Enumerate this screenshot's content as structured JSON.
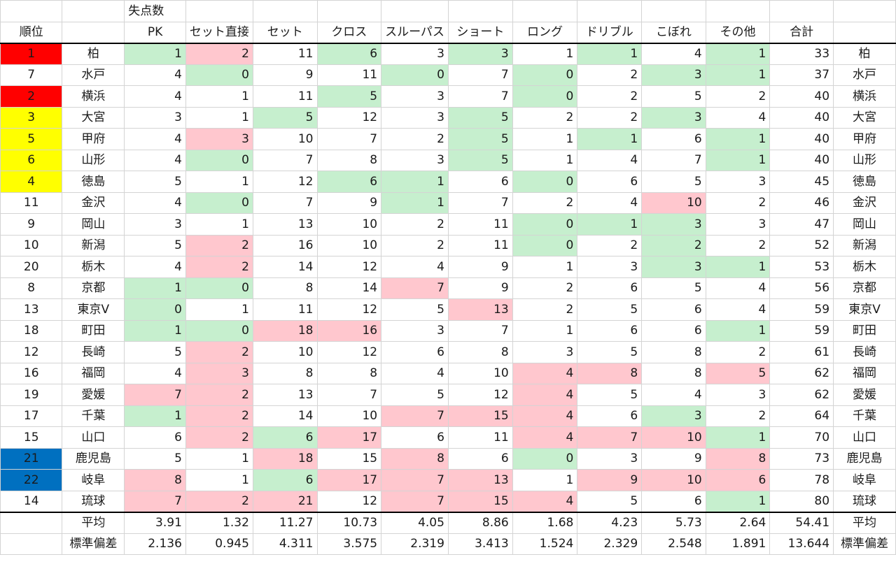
{
  "header": {
    "group_label": "失点数",
    "rank_label": "順位",
    "columns": [
      "PK",
      "セット直接",
      "セット",
      "クロス",
      "スルーパス",
      "ショート",
      "ロング",
      "ドリブル",
      "こぼれ",
      "その他"
    ],
    "total_label": "合計"
  },
  "rows": [
    {
      "rank": "1",
      "rank_color": "red",
      "team": "柏",
      "values": [
        "1",
        "2",
        "11",
        "6",
        "3",
        "3",
        "1",
        "1",
        "4",
        "1"
      ],
      "hl": [
        "pos",
        "neg",
        "",
        "pos",
        "",
        "pos",
        "",
        "pos",
        "",
        "pos"
      ],
      "total": "33"
    },
    {
      "rank": "7",
      "rank_color": "",
      "team": "水戸",
      "values": [
        "4",
        "0",
        "9",
        "11",
        "0",
        "7",
        "0",
        "2",
        "3",
        "1"
      ],
      "hl": [
        "",
        "pos",
        "",
        "",
        "pos",
        "",
        "pos",
        "",
        "pos",
        "pos"
      ],
      "total": "37"
    },
    {
      "rank": "2",
      "rank_color": "red",
      "team": "横浜",
      "values": [
        "4",
        "1",
        "11",
        "5",
        "3",
        "7",
        "0",
        "2",
        "5",
        "2"
      ],
      "hl": [
        "",
        "",
        "",
        "pos",
        "",
        "",
        "pos",
        "",
        "",
        ""
      ],
      "total": "40"
    },
    {
      "rank": "3",
      "rank_color": "yellow",
      "team": "大宮",
      "values": [
        "3",
        "1",
        "5",
        "12",
        "3",
        "5",
        "2",
        "2",
        "3",
        "4"
      ],
      "hl": [
        "",
        "",
        "pos",
        "",
        "",
        "pos",
        "",
        "",
        "pos",
        ""
      ],
      "total": "40"
    },
    {
      "rank": "5",
      "rank_color": "yellow",
      "team": "甲府",
      "values": [
        "4",
        "3",
        "10",
        "7",
        "2",
        "5",
        "1",
        "1",
        "6",
        "1"
      ],
      "hl": [
        "",
        "neg",
        "",
        "",
        "",
        "pos",
        "",
        "pos",
        "",
        "pos"
      ],
      "total": "40"
    },
    {
      "rank": "6",
      "rank_color": "yellow",
      "team": "山形",
      "values": [
        "4",
        "0",
        "7",
        "8",
        "3",
        "5",
        "1",
        "4",
        "7",
        "1"
      ],
      "hl": [
        "",
        "pos",
        "",
        "",
        "",
        "pos",
        "",
        "",
        "",
        "pos"
      ],
      "total": "40"
    },
    {
      "rank": "4",
      "rank_color": "yellow",
      "team": "徳島",
      "values": [
        "5",
        "1",
        "12",
        "6",
        "1",
        "6",
        "0",
        "6",
        "5",
        "3"
      ],
      "hl": [
        "",
        "",
        "",
        "pos",
        "pos",
        "",
        "pos",
        "",
        "",
        ""
      ],
      "total": "45"
    },
    {
      "rank": "11",
      "rank_color": "",
      "team": "金沢",
      "values": [
        "4",
        "0",
        "7",
        "9",
        "1",
        "7",
        "2",
        "4",
        "10",
        "2"
      ],
      "hl": [
        "",
        "pos",
        "",
        "",
        "pos",
        "",
        "",
        "",
        "neg",
        ""
      ],
      "total": "46"
    },
    {
      "rank": "9",
      "rank_color": "",
      "team": "岡山",
      "values": [
        "3",
        "1",
        "13",
        "10",
        "2",
        "11",
        "0",
        "1",
        "3",
        "3"
      ],
      "hl": [
        "",
        "",
        "",
        "",
        "",
        "",
        "pos",
        "pos",
        "pos",
        ""
      ],
      "total": "47"
    },
    {
      "rank": "10",
      "rank_color": "",
      "team": "新潟",
      "values": [
        "5",
        "2",
        "16",
        "10",
        "2",
        "11",
        "0",
        "2",
        "2",
        "2"
      ],
      "hl": [
        "",
        "neg",
        "",
        "",
        "",
        "",
        "pos",
        "",
        "pos",
        ""
      ],
      "total": "52"
    },
    {
      "rank": "20",
      "rank_color": "",
      "team": "栃木",
      "values": [
        "4",
        "2",
        "14",
        "12",
        "4",
        "9",
        "1",
        "3",
        "3",
        "1"
      ],
      "hl": [
        "",
        "neg",
        "",
        "",
        "",
        "",
        "",
        "",
        "pos",
        "pos"
      ],
      "total": "53"
    },
    {
      "rank": "8",
      "rank_color": "",
      "team": "京都",
      "values": [
        "1",
        "0",
        "8",
        "14",
        "7",
        "9",
        "2",
        "6",
        "5",
        "4"
      ],
      "hl": [
        "pos",
        "pos",
        "",
        "",
        "neg",
        "",
        "",
        "",
        "",
        ""
      ],
      "total": "56"
    },
    {
      "rank": "13",
      "rank_color": "",
      "team": "東京V",
      "values": [
        "0",
        "1",
        "11",
        "12",
        "5",
        "13",
        "2",
        "5",
        "6",
        "4"
      ],
      "hl": [
        "pos",
        "",
        "",
        "",
        "",
        "neg",
        "",
        "",
        "",
        ""
      ],
      "total": "59"
    },
    {
      "rank": "18",
      "rank_color": "",
      "team": "町田",
      "values": [
        "1",
        "0",
        "18",
        "16",
        "3",
        "7",
        "1",
        "6",
        "6",
        "1"
      ],
      "hl": [
        "pos",
        "pos",
        "neg",
        "neg",
        "",
        "",
        "",
        "",
        "",
        "pos"
      ],
      "total": "59"
    },
    {
      "rank": "12",
      "rank_color": "",
      "team": "長崎",
      "values": [
        "5",
        "2",
        "10",
        "12",
        "6",
        "8",
        "3",
        "5",
        "8",
        "2"
      ],
      "hl": [
        "",
        "neg",
        "",
        "",
        "",
        "",
        "",
        "",
        "",
        ""
      ],
      "total": "61"
    },
    {
      "rank": "16",
      "rank_color": "",
      "team": "福岡",
      "values": [
        "4",
        "3",
        "8",
        "8",
        "4",
        "10",
        "4",
        "8",
        "8",
        "5"
      ],
      "hl": [
        "",
        "neg",
        "",
        "",
        "",
        "",
        "neg",
        "neg",
        "",
        "neg"
      ],
      "total": "62"
    },
    {
      "rank": "19",
      "rank_color": "",
      "team": "愛媛",
      "values": [
        "7",
        "2",
        "13",
        "7",
        "5",
        "12",
        "4",
        "5",
        "4",
        "3"
      ],
      "hl": [
        "neg",
        "neg",
        "",
        "",
        "",
        "",
        "neg",
        "",
        "",
        ""
      ],
      "total": "62"
    },
    {
      "rank": "17",
      "rank_color": "",
      "team": "千葉",
      "values": [
        "1",
        "2",
        "14",
        "10",
        "7",
        "15",
        "4",
        "6",
        "3",
        "2"
      ],
      "hl": [
        "pos",
        "neg",
        "",
        "",
        "neg",
        "neg",
        "neg",
        "",
        "pos",
        ""
      ],
      "total": "64"
    },
    {
      "rank": "15",
      "rank_color": "",
      "team": "山口",
      "values": [
        "6",
        "2",
        "6",
        "17",
        "6",
        "11",
        "4",
        "7",
        "10",
        "1"
      ],
      "hl": [
        "",
        "neg",
        "pos",
        "neg",
        "",
        "",
        "neg",
        "neg",
        "neg",
        "pos"
      ],
      "total": "70"
    },
    {
      "rank": "21",
      "rank_color": "blue",
      "team": "鹿児島",
      "values": [
        "5",
        "1",
        "18",
        "15",
        "8",
        "6",
        "0",
        "3",
        "9",
        "8"
      ],
      "hl": [
        "",
        "",
        "neg",
        "",
        "neg",
        "",
        "pos",
        "",
        "",
        "neg"
      ],
      "total": "73"
    },
    {
      "rank": "22",
      "rank_color": "blue",
      "team": "岐阜",
      "values": [
        "8",
        "1",
        "6",
        "17",
        "7",
        "13",
        "1",
        "9",
        "10",
        "6"
      ],
      "hl": [
        "neg",
        "",
        "pos",
        "neg",
        "neg",
        "neg",
        "",
        "neg",
        "neg",
        "neg"
      ],
      "total": "78"
    },
    {
      "rank": "14",
      "rank_color": "",
      "team": "琉球",
      "values": [
        "7",
        "2",
        "21",
        "12",
        "7",
        "15",
        "4",
        "5",
        "6",
        "1"
      ],
      "hl": [
        "neg",
        "neg",
        "neg",
        "",
        "neg",
        "neg",
        "neg",
        "",
        "",
        "pos"
      ],
      "total": "80"
    }
  ],
  "stats": [
    {
      "label": "平均",
      "values": [
        "3.91",
        "1.32",
        "11.27",
        "10.73",
        "4.05",
        "8.86",
        "1.68",
        "4.23",
        "5.73",
        "2.64"
      ],
      "total": "54.41"
    },
    {
      "label": "標準偏差",
      "values": [
        "2.136",
        "0.945",
        "4.311",
        "3.575",
        "2.319",
        "3.413",
        "1.524",
        "2.329",
        "2.548",
        "1.891"
      ],
      "total": "13.644"
    }
  ]
}
